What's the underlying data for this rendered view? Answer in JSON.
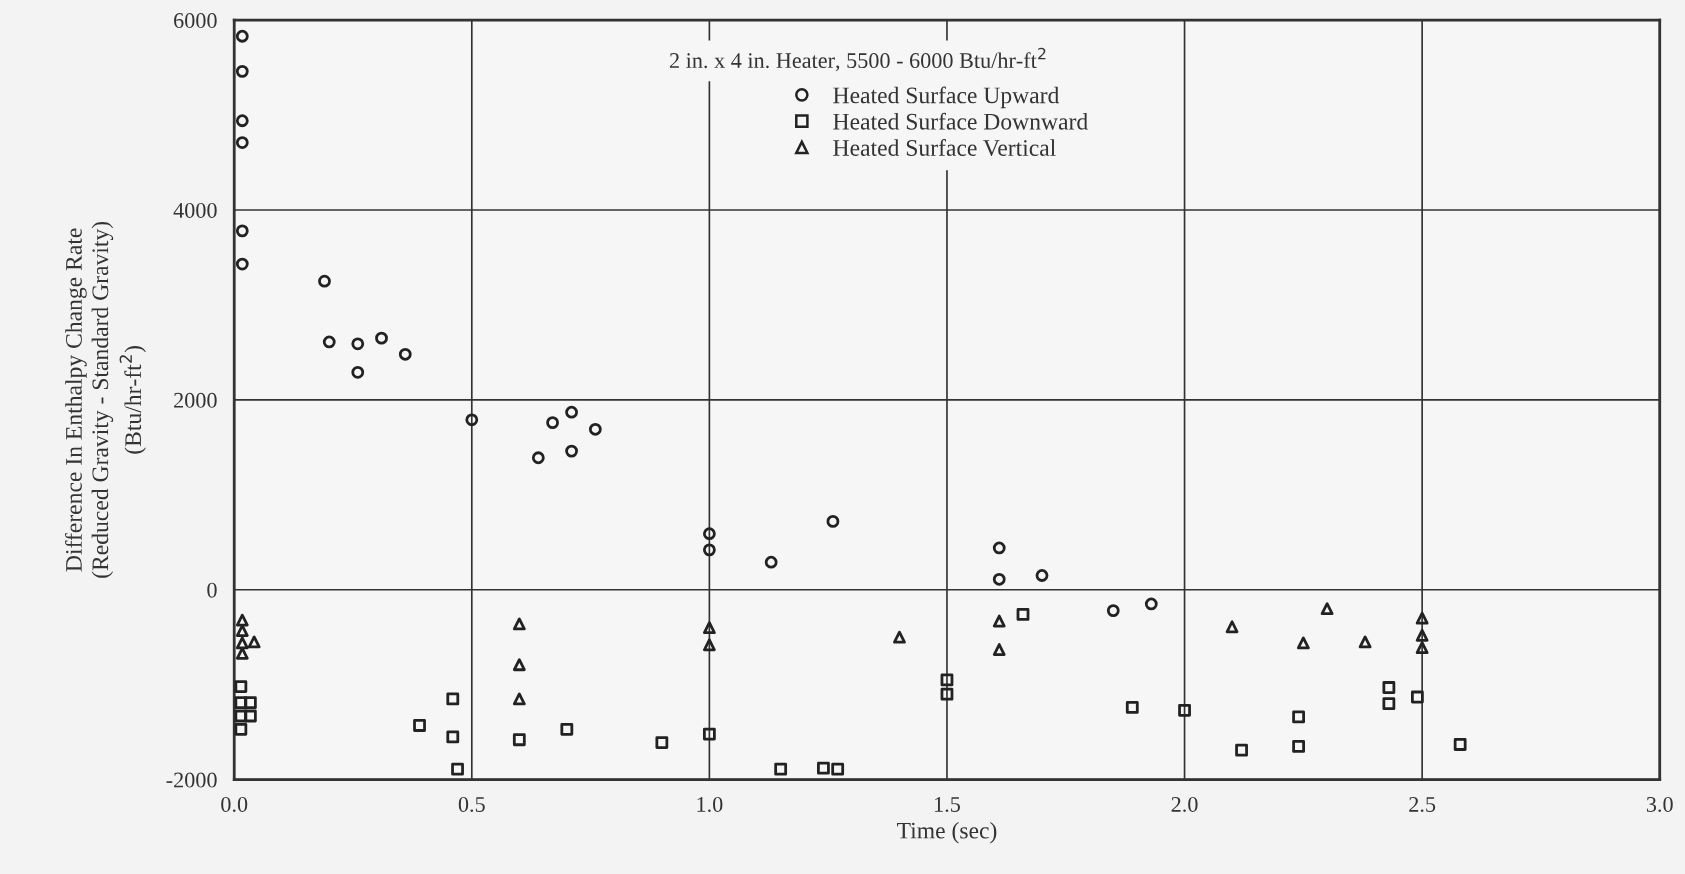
{
  "chart_data": {
    "type": "scatter",
    "xlabel": "Time (sec)",
    "ylabel": "Difference In Enthalpy Change Rate\n(Reduced Gravity - Standard Gravity)\n(Btu/hr-ft$^{2}$)",
    "annotations": [
      "2 in. x 4 in. Heater, 5500 - 6000 Btu/hr-ft$^{2}$"
    ],
    "xlim": [
      0,
      3
    ],
    "xticks": [
      {
        "value": 0,
        "label": "0.0"
      },
      {
        "value": 0.5,
        "label": "0.5"
      },
      {
        "value": 1,
        "label": "1.0"
      },
      {
        "value": 1.5,
        "label": "1.5"
      },
      {
        "value": 2,
        "label": "2.0"
      },
      {
        "value": 2.5,
        "label": "2.5"
      },
      {
        "value": 3,
        "label": "3.0"
      }
    ],
    "ylim": [
      -2000,
      6000
    ],
    "yticks": [
      -2000,
      0,
      2000,
      4000,
      6000
    ],
    "grid": true,
    "legend": "top right",
    "series": [
      {
        "name": "Heated Surface Upward",
        "color": "#222222",
        "marker": "circle",
        "x": [
          0.017,
          0.017,
          0.017,
          0.017,
          0.017,
          0.017,
          0.19,
          0.2,
          0.26,
          0.31,
          0.36,
          0.26,
          0.5,
          0.64,
          0.67,
          0.71,
          0.71,
          0.76,
          1.0,
          1.0,
          1.13,
          1.26,
          1.61,
          1.61,
          1.7,
          1.85,
          1.93
        ],
        "values": [
          5830,
          5460,
          4940,
          4710,
          3780,
          3430,
          3250,
          2610,
          2590,
          2650,
          2480,
          2290,
          1790,
          1390,
          1760,
          1870,
          1460,
          1690,
          590,
          420,
          290,
          720,
          440,
          110,
          150,
          -220,
          -150
        ]
      },
      {
        "name": "Heated Surface Downward",
        "color": "#222222",
        "marker": "square",
        "x": [
          0.014,
          0.014,
          0.034,
          0.014,
          0.034,
          0.014,
          0.39,
          0.46,
          0.46,
          0.47,
          0.6,
          0.7,
          0.9,
          1.0,
          1.15,
          1.24,
          1.27,
          1.5,
          1.5,
          1.66,
          1.89,
          2.0,
          2.12,
          2.24,
          2.24,
          2.43,
          2.43,
          2.49,
          2.58
        ],
        "values": [
          -1020,
          -1190,
          -1190,
          -1330,
          -1330,
          -1470,
          -1430,
          -1150,
          -1550,
          -1890,
          -1580,
          -1470,
          -1610,
          -1520,
          -1890,
          -1880,
          -1890,
          -950,
          -1100,
          -260,
          -1240,
          -1270,
          -1690,
          -1340,
          -1650,
          -1030,
          -1200,
          -1130,
          -1630
        ]
      },
      {
        "name": "Heated Surface Vertical",
        "color": "#222222",
        "marker": "triangle",
        "x": [
          0.017,
          0.017,
          0.017,
          0.042,
          0.017,
          0.6,
          0.6,
          0.6,
          1.0,
          1.0,
          1.4,
          1.61,
          1.61,
          2.1,
          2.3,
          2.25,
          2.38,
          2.5,
          2.5,
          2.5
        ],
        "values": [
          -320,
          -430,
          -560,
          -550,
          -670,
          -360,
          -790,
          -1150,
          -400,
          -580,
          -500,
          -330,
          -630,
          -390,
          -200,
          -560,
          -550,
          -300,
          -480,
          -610
        ]
      }
    ]
  }
}
